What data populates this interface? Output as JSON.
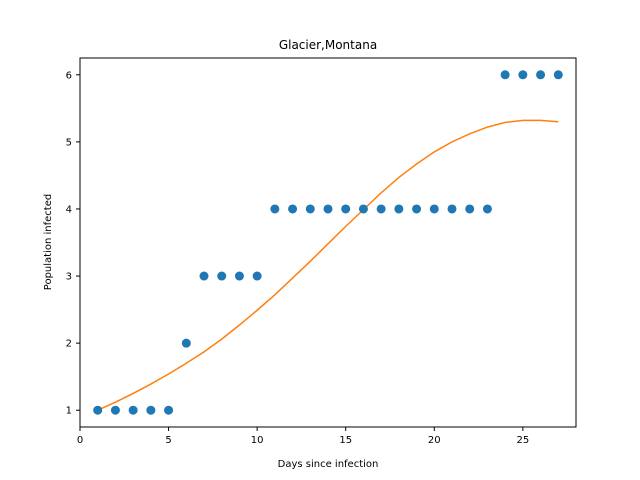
{
  "chart_data": {
    "type": "scatter",
    "title": "Glacier,Montana",
    "xlabel": "Days since infection",
    "ylabel": "Population infected",
    "xlim": [
      0,
      28
    ],
    "ylim": [
      0.75,
      6.25
    ],
    "xticks": [
      0,
      5,
      10,
      15,
      20,
      25
    ],
    "yticks": [
      1,
      2,
      3,
      4,
      5,
      6
    ],
    "grid": false,
    "legend": "none",
    "series": [
      {
        "kind": "scatter",
        "color": "#1f77b4",
        "x": [
          1,
          2,
          3,
          4,
          5,
          6,
          7,
          8,
          9,
          10,
          11,
          12,
          13,
          14,
          15,
          16,
          17,
          18,
          19,
          20,
          21,
          22,
          23,
          24,
          25,
          26,
          27
        ],
        "y": [
          1,
          1,
          1,
          1,
          1,
          2,
          3,
          3,
          3,
          3,
          4,
          4,
          4,
          4,
          4,
          4,
          4,
          4,
          4,
          4,
          4,
          4,
          4,
          6,
          6,
          6,
          6
        ]
      },
      {
        "kind": "line",
        "color": "#ff7f0e",
        "x": [
          1,
          2,
          3,
          4,
          5,
          6,
          7,
          8,
          9,
          10,
          11,
          12,
          13,
          14,
          15,
          16,
          17,
          18,
          19,
          20,
          21,
          22,
          23,
          24,
          25,
          26,
          27
        ],
        "y": [
          1.0,
          1.12,
          1.25,
          1.39,
          1.54,
          1.7,
          1.87,
          2.06,
          2.27,
          2.49,
          2.72,
          2.97,
          3.22,
          3.48,
          3.74,
          3.99,
          4.24,
          4.47,
          4.67,
          4.85,
          5.0,
          5.12,
          5.22,
          5.29,
          5.32,
          5.32,
          5.3
        ]
      }
    ]
  }
}
